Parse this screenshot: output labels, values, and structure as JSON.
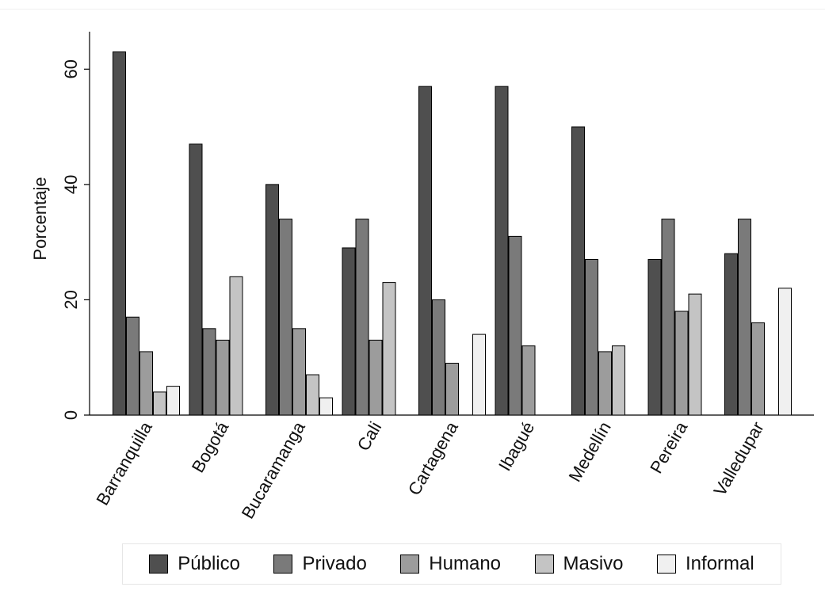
{
  "chart_data": {
    "type": "bar",
    "ylabel": "Porcentaje",
    "xlabel": "",
    "ylim": [
      0,
      66.5
    ],
    "yticks": [
      0,
      20,
      40,
      60
    ],
    "grid": false,
    "legend_position": "bottom",
    "categories": [
      "Barranquilla",
      "Bogotá",
      "Bucaramanga",
      "Cali",
      "Cartagena",
      "Ibagué",
      "Medellín",
      "Pereira",
      "Valledupar"
    ],
    "series": [
      {
        "name": "Público",
        "color": "#4f4f4f",
        "values": [
          63,
          47,
          40,
          29,
          57,
          57,
          50,
          27,
          28
        ]
      },
      {
        "name": "Privado",
        "color": "#7a7a7a",
        "values": [
          17,
          15,
          34,
          34,
          20,
          31,
          27,
          34,
          34
        ]
      },
      {
        "name": "Humano",
        "color": "#9c9c9c",
        "values": [
          11,
          13,
          15,
          13,
          9,
          12,
          11,
          18,
          16
        ]
      },
      {
        "name": "Masivo",
        "color": "#c4c4c4",
        "values": [
          4,
          24,
          7,
          23,
          null,
          null,
          12,
          21,
          null
        ]
      },
      {
        "name": "Informal",
        "color": "#f0f0f0",
        "values": [
          5,
          null,
          3,
          null,
          14,
          null,
          null,
          null,
          22
        ]
      }
    ]
  }
}
